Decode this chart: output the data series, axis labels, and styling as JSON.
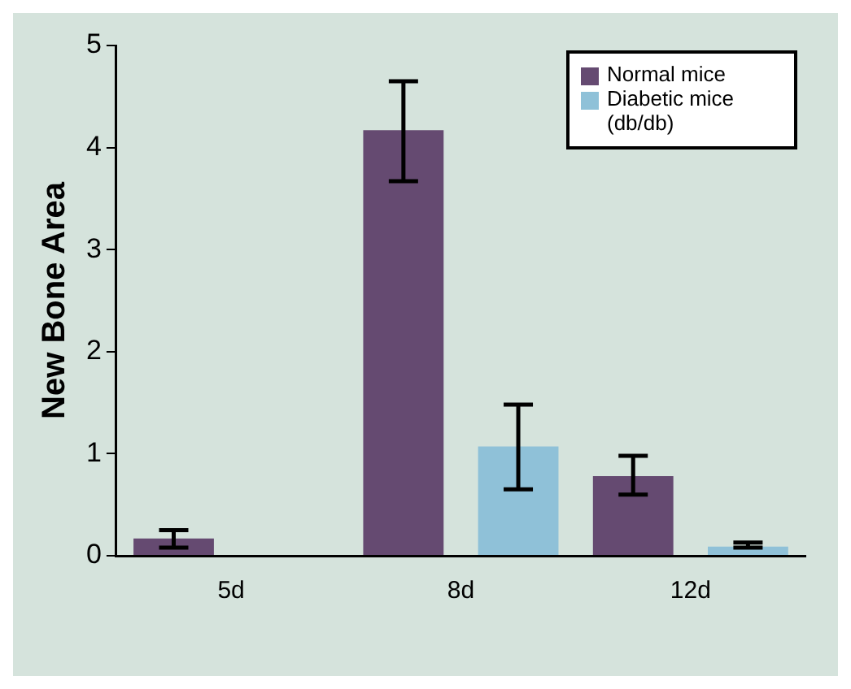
{
  "chart_data": {
    "type": "bar",
    "ylabel": "New Bone Area",
    "categories": [
      "5d",
      "8d",
      "12d"
    ],
    "series": [
      {
        "name": "Normal mice",
        "color": "#654a71",
        "values": [
          0.17,
          4.17,
          0.78
        ],
        "errors": [
          [
            0.08,
            0.25
          ],
          [
            3.67,
            4.65
          ],
          [
            0.6,
            0.98
          ]
        ]
      },
      {
        "name": "Diabetic mice (db/db)",
        "color": "#8fc1d8",
        "values": [
          0,
          1.07,
          0.09
        ],
        "errors": [
          null,
          [
            0.65,
            1.48
          ],
          [
            0.08,
            0.13
          ]
        ]
      }
    ],
    "ylim": [
      0,
      5
    ],
    "yticks": [
      0,
      1,
      2,
      3,
      4,
      5
    ],
    "grid": false,
    "legend": "top right"
  }
}
